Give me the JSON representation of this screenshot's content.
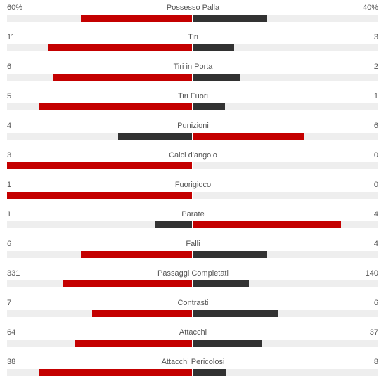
{
  "colors": {
    "home": "#c40000",
    "away": "#323232",
    "track": "#eeeeee"
  },
  "stats": [
    {
      "label": "Possesso Palla",
      "home_text": "60%",
      "away_text": "40%",
      "home_fill": 0.6,
      "away_fill": 0.4,
      "home_color": "red",
      "away_color": "dark"
    },
    {
      "label": "Tiri",
      "home_text": "11",
      "away_text": "3",
      "home_fill": 0.78,
      "away_fill": 0.22,
      "home_color": "red",
      "away_color": "dark"
    },
    {
      "label": "Tiri in Porta",
      "home_text": "6",
      "away_text": "2",
      "home_fill": 0.75,
      "away_fill": 0.25,
      "home_color": "red",
      "away_color": "dark"
    },
    {
      "label": "Tiri Fuori",
      "home_text": "5",
      "away_text": "1",
      "home_fill": 0.83,
      "away_fill": 0.17,
      "home_color": "red",
      "away_color": "dark"
    },
    {
      "label": "Punizioni",
      "home_text": "4",
      "away_text": "6",
      "home_fill": 0.4,
      "away_fill": 0.6,
      "home_color": "dark",
      "away_color": "red"
    },
    {
      "label": "Calci d'angolo",
      "home_text": "3",
      "away_text": "0",
      "home_fill": 1.0,
      "away_fill": 0.0,
      "home_color": "red",
      "away_color": "dark"
    },
    {
      "label": "Fuorigioco",
      "home_text": "1",
      "away_text": "0",
      "home_fill": 1.0,
      "away_fill": 0.0,
      "home_color": "red",
      "away_color": "dark"
    },
    {
      "label": "Parate",
      "home_text": "1",
      "away_text": "4",
      "home_fill": 0.2,
      "away_fill": 0.8,
      "home_color": "dark",
      "away_color": "red"
    },
    {
      "label": "Falli",
      "home_text": "6",
      "away_text": "4",
      "home_fill": 0.6,
      "away_fill": 0.4,
      "home_color": "red",
      "away_color": "dark"
    },
    {
      "label": "Passaggi Completati",
      "home_text": "331",
      "away_text": "140",
      "home_fill": 0.7,
      "away_fill": 0.3,
      "home_color": "red",
      "away_color": "dark"
    },
    {
      "label": "Contrasti",
      "home_text": "7",
      "away_text": "6",
      "home_fill": 0.54,
      "away_fill": 0.46,
      "home_color": "red",
      "away_color": "dark"
    },
    {
      "label": "Attacchi",
      "home_text": "64",
      "away_text": "37",
      "home_fill": 0.63,
      "away_fill": 0.37,
      "home_color": "red",
      "away_color": "dark"
    },
    {
      "label": "Attacchi Pericolosi",
      "home_text": "38",
      "away_text": "8",
      "home_fill": 0.83,
      "away_fill": 0.18,
      "home_color": "red",
      "away_color": "dark"
    }
  ]
}
